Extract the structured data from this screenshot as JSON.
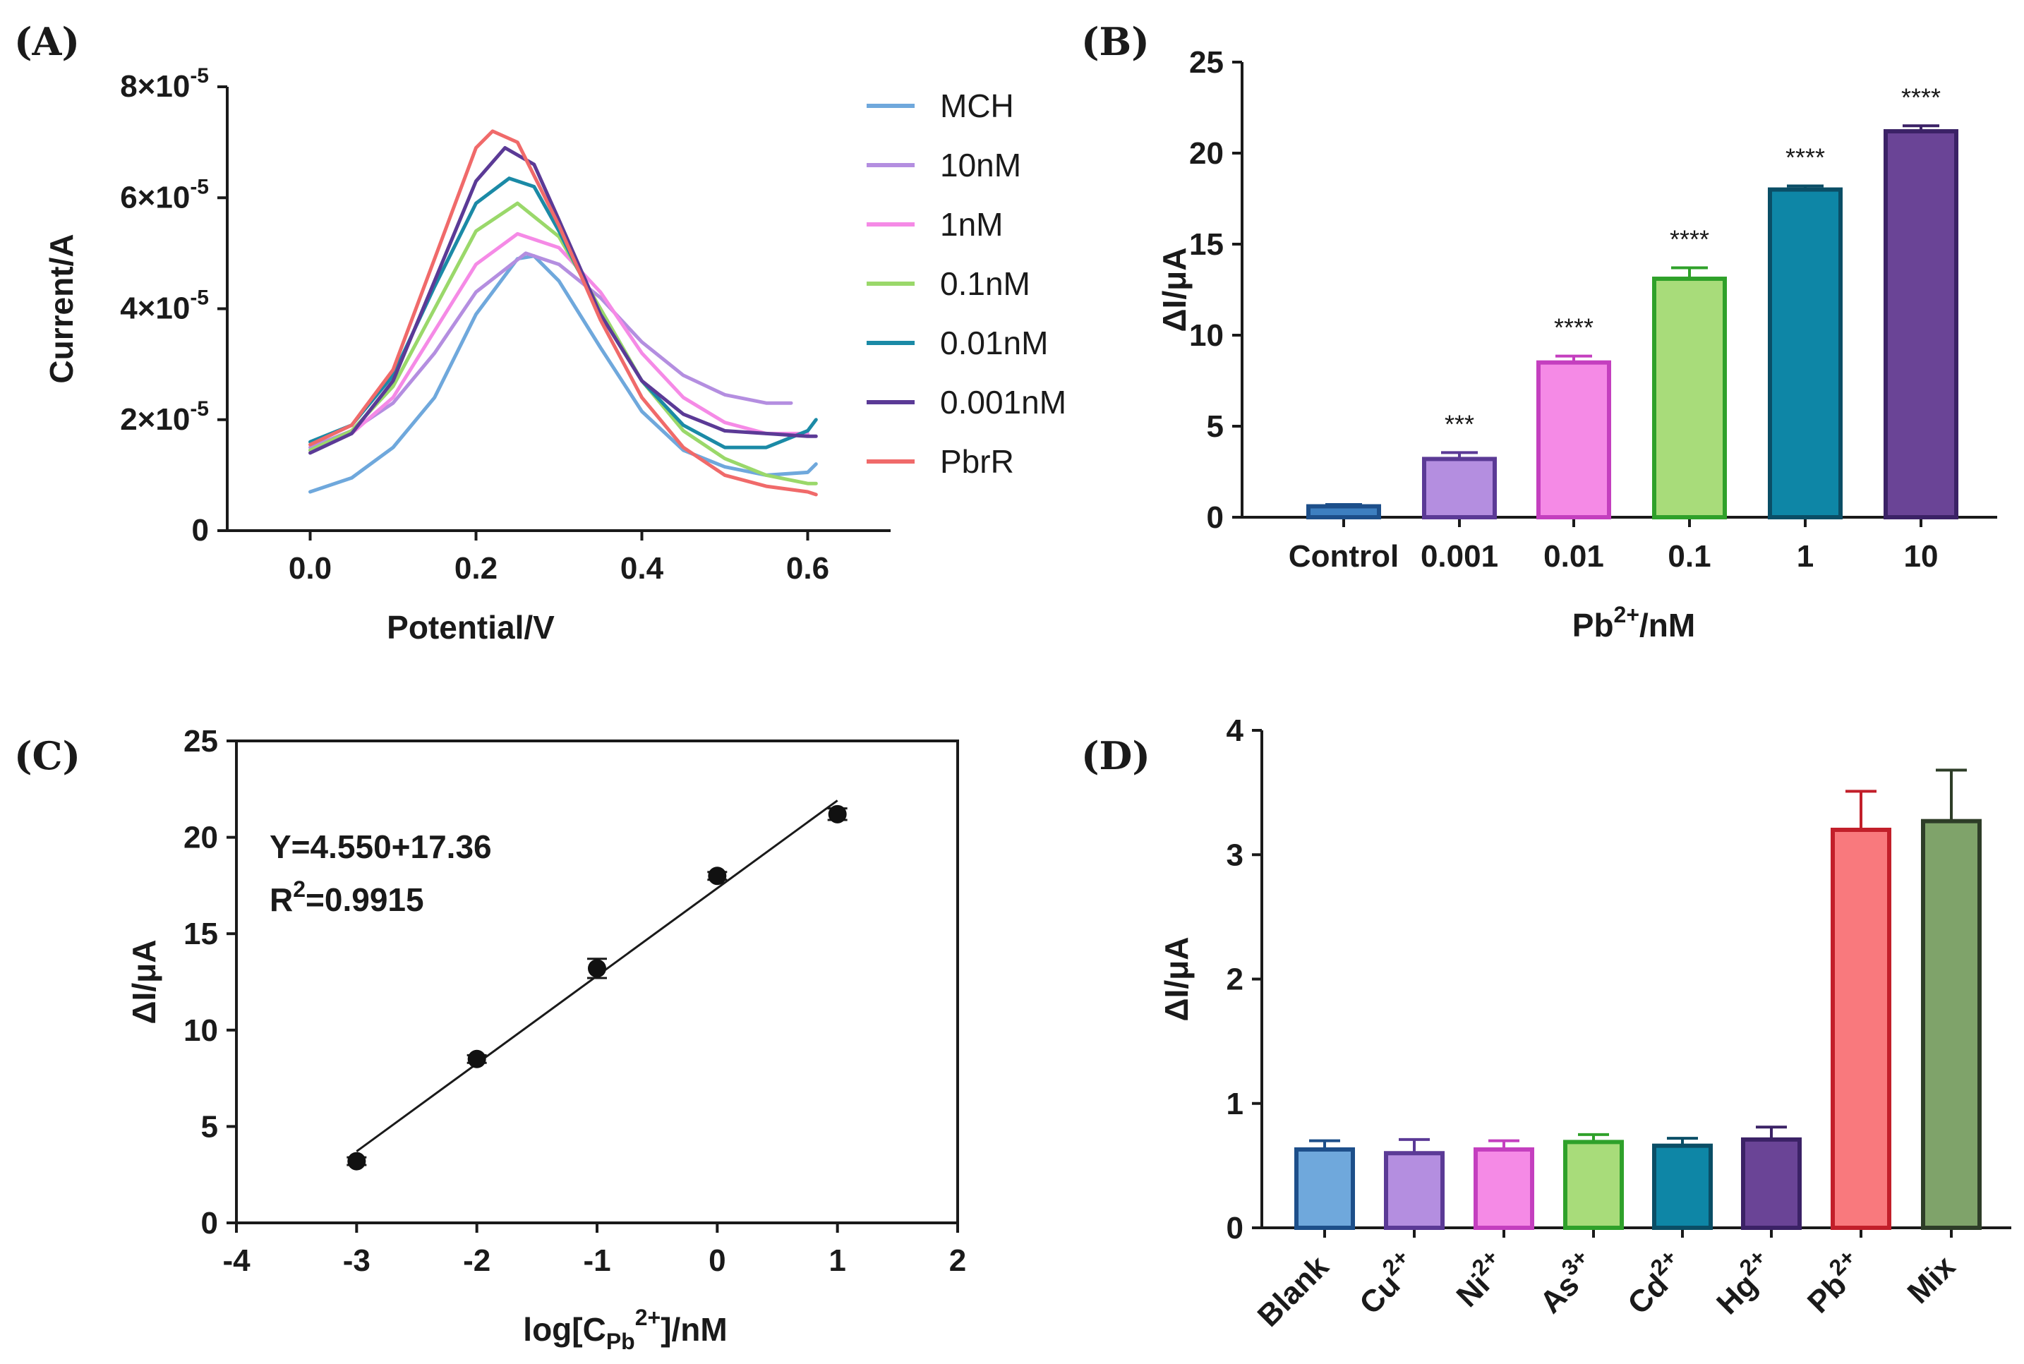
{
  "chart_data": [
    {
      "panel": "(A)",
      "type": "line",
      "title": "",
      "xlabel": "Potential/V",
      "ylabel": "Current/A",
      "xlim": [
        -0.1,
        0.7
      ],
      "ylim": [
        0,
        8e-05
      ],
      "xticks": [
        0.0,
        0.2,
        0.4,
        0.6
      ],
      "xtick_labels": [
        "0.0",
        "0.2",
        "0.4",
        "0.6"
      ],
      "yticks": [
        0,
        2e-05,
        4e-05,
        6e-05,
        8e-05
      ],
      "ytick_labels": [
        {
          "base": "0",
          "exp": ""
        },
        {
          "base": "2×10",
          "exp": "-5"
        },
        {
          "base": "4×10",
          "exp": "-5"
        },
        {
          "base": "6×10",
          "exp": "-5"
        },
        {
          "base": "8×10",
          "exp": "-5"
        }
      ],
      "legend_position": "right",
      "series": [
        {
          "name": "MCH",
          "color": "#6fa8dc",
          "x": [
            0.0,
            0.05,
            0.1,
            0.15,
            0.2,
            0.25,
            0.27,
            0.3,
            0.35,
            0.4,
            0.45,
            0.5,
            0.55,
            0.6,
            0.61
          ],
          "y": [
            7e-06,
            9.5e-06,
            1.5e-05,
            2.4e-05,
            3.9e-05,
            4.9e-05,
            4.95e-05,
            4.5e-05,
            3.3e-05,
            2.15e-05,
            1.45e-05,
            1.15e-05,
            1e-05,
            1.05e-05,
            1.2e-05
          ]
        },
        {
          "name": "10nM",
          "color": "#b48ee0",
          "x": [
            0.0,
            0.05,
            0.1,
            0.15,
            0.2,
            0.26,
            0.3,
            0.35,
            0.4,
            0.45,
            0.5,
            0.55,
            0.58
          ],
          "y": [
            1.5e-05,
            1.8e-05,
            2.3e-05,
            3.2e-05,
            4.3e-05,
            5e-05,
            4.8e-05,
            4.2e-05,
            3.4e-05,
            2.8e-05,
            2.45e-05,
            2.3e-05,
            2.3e-05
          ]
        },
        {
          "name": "1nM",
          "color": "#f58ae6",
          "x": [
            0.0,
            0.05,
            0.1,
            0.15,
            0.2,
            0.25,
            0.3,
            0.35,
            0.4,
            0.45,
            0.5,
            0.55,
            0.6
          ],
          "y": [
            1.45e-05,
            1.75e-05,
            2.4e-05,
            3.6e-05,
            4.8e-05,
            5.35e-05,
            5.1e-05,
            4.3e-05,
            3.2e-05,
            2.4e-05,
            1.95e-05,
            1.75e-05,
            1.75e-05
          ]
        },
        {
          "name": "0.1nM",
          "color": "#9ad86a",
          "x": [
            0.0,
            0.05,
            0.1,
            0.15,
            0.2,
            0.25,
            0.3,
            0.35,
            0.4,
            0.45,
            0.5,
            0.55,
            0.6,
            0.61
          ],
          "y": [
            1.45e-05,
            1.8e-05,
            2.6e-05,
            4e-05,
            5.4e-05,
            5.9e-05,
            5.3e-05,
            4e-05,
            2.7e-05,
            1.8e-05,
            1.3e-05,
            1e-05,
            8.5e-06,
            8.5e-06
          ]
        },
        {
          "name": "0.01nM",
          "color": "#1b8aa6",
          "x": [
            0.0,
            0.05,
            0.1,
            0.15,
            0.2,
            0.24,
            0.27,
            0.3,
            0.35,
            0.4,
            0.45,
            0.5,
            0.55,
            0.6,
            0.61
          ],
          "y": [
            1.6e-05,
            1.9e-05,
            2.8e-05,
            4.4e-05,
            5.9e-05,
            6.35e-05,
            6.2e-05,
            5.4e-05,
            3.9e-05,
            2.7e-05,
            1.9e-05,
            1.5e-05,
            1.5e-05,
            1.8e-05,
            2e-05
          ]
        },
        {
          "name": "0.001nM",
          "color": "#5b3a96",
          "x": [
            0.0,
            0.05,
            0.1,
            0.15,
            0.2,
            0.235,
            0.27,
            0.3,
            0.35,
            0.4,
            0.45,
            0.5,
            0.55,
            0.6,
            0.61
          ],
          "y": [
            1.4e-05,
            1.75e-05,
            2.7e-05,
            4.5e-05,
            6.3e-05,
            6.9e-05,
            6.6e-05,
            5.6e-05,
            3.9e-05,
            2.7e-05,
            2.1e-05,
            1.8e-05,
            1.75e-05,
            1.7e-05,
            1.7e-05
          ]
        },
        {
          "name": "PbrR",
          "color": "#f06a6a",
          "x": [
            0.0,
            0.05,
            0.1,
            0.15,
            0.2,
            0.22,
            0.25,
            0.3,
            0.35,
            0.4,
            0.45,
            0.5,
            0.55,
            0.6,
            0.61
          ],
          "y": [
            1.55e-05,
            1.9e-05,
            2.9e-05,
            4.9e-05,
            6.9e-05,
            7.2e-05,
            7e-05,
            5.5e-05,
            3.8e-05,
            2.4e-05,
            1.5e-05,
            1e-05,
            8e-06,
            7e-06,
            6.5e-06
          ]
        }
      ]
    },
    {
      "panel": "(B)",
      "type": "bar",
      "xlabel": {
        "base": "Pb",
        "sup": "2+",
        "rest": "/nM"
      },
      "ylabel": "ΔI/μA",
      "ylim": [
        0,
        25
      ],
      "yticks": [
        0,
        5,
        10,
        15,
        20,
        25
      ],
      "ytick_labels": [
        "0",
        "5",
        "10",
        "15",
        "20",
        "25"
      ],
      "categories": [
        "Control",
        "0.001",
        "0.01",
        "0.1",
        "1",
        "10"
      ],
      "values": [
        0.6,
        3.2,
        8.5,
        13.1,
        18.0,
        21.2
      ],
      "errors": [
        0.1,
        0.35,
        0.35,
        0.6,
        0.2,
        0.3
      ],
      "significance": [
        "",
        "***",
        "****",
        "****",
        "****",
        "****"
      ],
      "fill_colors": [
        "#3d7fc0",
        "#b48ee0",
        "#f58ae6",
        "#a8dc7a",
        "#0e86a6",
        "#6a4496"
      ],
      "edge_colors": [
        "#1d4f8a",
        "#5b3a96",
        "#c43fbf",
        "#2fa12a",
        "#0a4e66",
        "#3b2266"
      ]
    },
    {
      "panel": "(C)",
      "type": "scatter",
      "xlabel": {
        "pre": "log[C",
        "sub": "Pb",
        "sup": "2+",
        "post": "]/nM"
      },
      "ylabel": "ΔI/μA",
      "xlim": [
        -4,
        2
      ],
      "ylim": [
        0,
        25
      ],
      "xticks": [
        -4,
        -3,
        -2,
        -1,
        0,
        1,
        2
      ],
      "xtick_labels": [
        "-4",
        "-3",
        "-2",
        "-1",
        "0",
        "1",
        "2"
      ],
      "yticks": [
        0,
        5,
        10,
        15,
        20,
        25
      ],
      "ytick_labels": [
        "0",
        "5",
        "10",
        "15",
        "20",
        "25"
      ],
      "x": [
        -3,
        -2,
        -1,
        0,
        1
      ],
      "y": [
        3.2,
        8.5,
        13.2,
        18.0,
        21.2
      ],
      "errors": [
        0.2,
        0.2,
        0.5,
        0.2,
        0.3
      ],
      "fit": {
        "slope": 4.55,
        "intercept": 17.36,
        "x_range": [
          -3,
          1
        ]
      },
      "equation": "Y=4.550+17.36",
      "r2": {
        "pre": "R",
        "sup": "2",
        "post": "=0.9915"
      }
    },
    {
      "panel": "(D)",
      "type": "bar",
      "xlabel": "",
      "ylabel": "ΔI/μA",
      "ylim": [
        0,
        4
      ],
      "yticks": [
        0,
        1,
        2,
        3,
        4
      ],
      "ytick_labels": [
        "0",
        "1",
        "2",
        "3",
        "4"
      ],
      "categories": [
        {
          "base": "Blank",
          "sup": ""
        },
        {
          "base": "Cu",
          "sup": "2+"
        },
        {
          "base": "Ni",
          "sup": "2+"
        },
        {
          "base": "As",
          "sup": "3+"
        },
        {
          "base": "Cd",
          "sup": "2+"
        },
        {
          "base": "Hg",
          "sup": "2+"
        },
        {
          "base": "Pb",
          "sup": "2+"
        },
        {
          "base": "Mix",
          "sup": ""
        }
      ],
      "values": [
        0.63,
        0.6,
        0.63,
        0.69,
        0.66,
        0.71,
        3.2,
        3.27
      ],
      "errors": [
        0.07,
        0.11,
        0.07,
        0.06,
        0.06,
        0.1,
        0.31,
        0.41
      ],
      "fill_colors": [
        "#6fa8dc",
        "#b48ee0",
        "#f58ae6",
        "#a8dc7a",
        "#0e86a6",
        "#6a4496",
        "#f9797d",
        "#7fa36a"
      ],
      "edge_colors": [
        "#1d4f8a",
        "#5b3a96",
        "#c43fbf",
        "#2fa12a",
        "#0a4e66",
        "#3b2266",
        "#c21f2a",
        "#2e3d28"
      ]
    }
  ]
}
